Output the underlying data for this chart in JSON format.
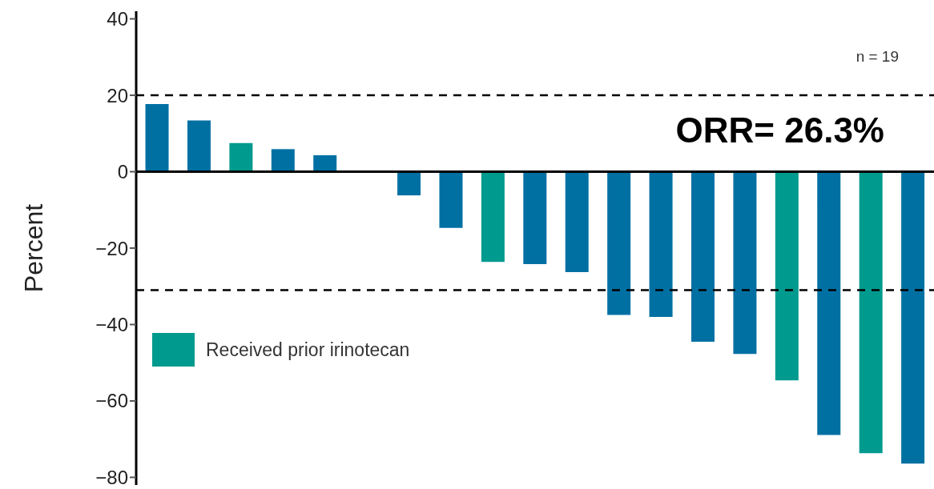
{
  "chart_data": {
    "type": "bar",
    "stacked": true,
    "ylabel": "Percent",
    "categories": [
      null,
      null,
      null,
      null,
      null,
      null,
      null,
      null,
      null,
      null,
      null,
      null,
      null,
      null,
      null,
      null,
      null,
      null,
      null
    ],
    "series": [
      {
        "color": "#0070a3",
        "values": [
          17.7,
          13.4,
          null,
          5.9,
          4.3,
          null,
          -6.2,
          -14.7,
          null,
          -24.2,
          -26.3,
          -37.5,
          -38,
          -44.5,
          -47.7,
          null,
          -68.9,
          null,
          -76.4
        ]
      },
      {
        "name": "Received prior irinotecan",
        "color": "#009a8e",
        "values": [
          null,
          null,
          7.5,
          null,
          null,
          null,
          null,
          null,
          -23.6,
          null,
          null,
          null,
          null,
          null,
          null,
          -54.6,
          null,
          -73.7,
          null
        ]
      }
    ],
    "ylim": [
      -82,
      42
    ],
    "yticks": [
      40,
      20,
      0,
      -20,
      -40,
      -60,
      -80
    ],
    "ref_lines": [
      {
        "axis": "y",
        "value": 20,
        "line_style": "dashed",
        "color": "#000000"
      },
      {
        "axis": "y",
        "value": -31,
        "line_style": "dashed",
        "color": "#000000"
      }
    ],
    "legend": "left",
    "annotations": [
      "n = 19",
      "ORR= 26.3%"
    ]
  }
}
